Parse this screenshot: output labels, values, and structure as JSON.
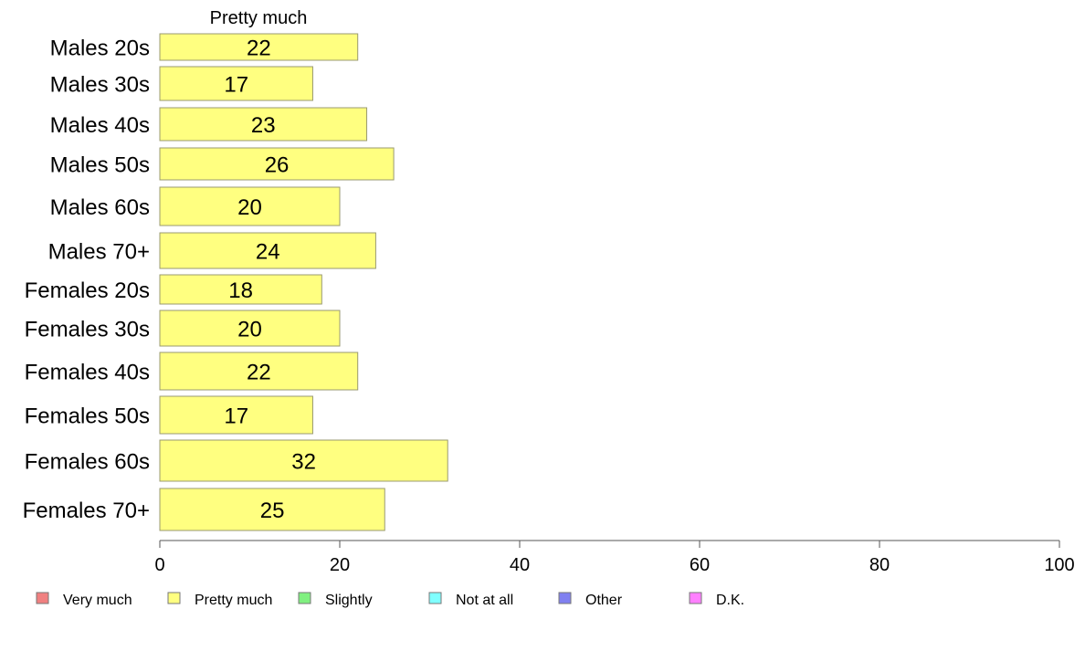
{
  "chart_data": {
    "type": "bar",
    "orientation": "horizontal",
    "stacked": true,
    "column_header": "Pretty much",
    "categories": [
      "Males 20s",
      "Males 30s",
      "Males 40s",
      "Males 50s",
      "Males 60s",
      "Males 70+",
      "Females 20s",
      "Females 30s",
      "Females 40s",
      "Females 50s",
      "Females 60s",
      "Females 70+"
    ],
    "series": [
      {
        "name": "Pretty much",
        "color": "#ffff80",
        "values": [
          22,
          17,
          23,
          26,
          20,
          24,
          18,
          20,
          22,
          17,
          32,
          25
        ]
      }
    ],
    "xlim": [
      0,
      100
    ],
    "xticks": [
      "0",
      "20",
      "40",
      "60",
      "80",
      "100"
    ],
    "grid": false,
    "legend": {
      "placement": "bottom",
      "items": [
        {
          "label": "Very much",
          "color": "#f08080"
        },
        {
          "label": "Pretty much",
          "color": "#ffff80"
        },
        {
          "label": "Slightly",
          "color": "#80f080"
        },
        {
          "label": "Not at all",
          "color": "#80ffff"
        },
        {
          "label": "Other",
          "color": "#8080f0"
        },
        {
          "label": "D.K.",
          "color": "#ff80ff"
        }
      ]
    }
  }
}
